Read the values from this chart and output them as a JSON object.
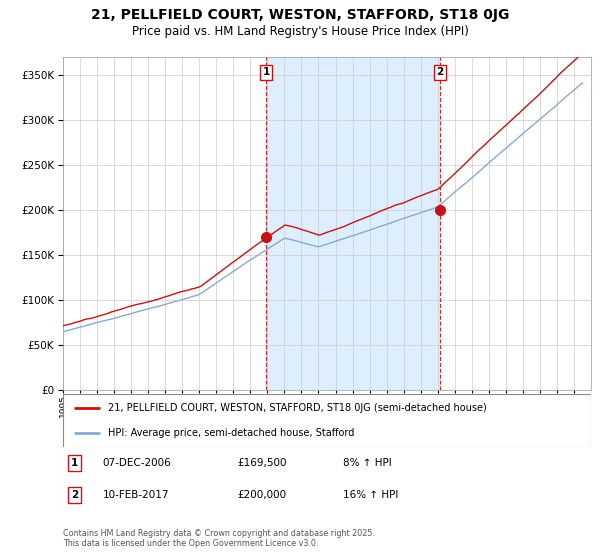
{
  "title": "21, PELLFIELD COURT, WESTON, STAFFORD, ST18 0JG",
  "subtitle": "Price paid vs. HM Land Registry's House Price Index (HPI)",
  "legend_line1": "21, PELLFIELD COURT, WESTON, STAFFORD, ST18 0JG (semi-detached house)",
  "legend_line2": "HPI: Average price, semi-detached house, Stafford",
  "sale1_label": "1",
  "sale1_date": "07-DEC-2006",
  "sale1_price": "£169,500",
  "sale1_hpi": "8% ↑ HPI",
  "sale2_label": "2",
  "sale2_date": "10-FEB-2017",
  "sale2_price": "£200,000",
  "sale2_hpi": "16% ↑ HPI",
  "footer": "Contains HM Land Registry data © Crown copyright and database right 2025.\nThis data is licensed under the Open Government Licence v3.0.",
  "red_color": "#cc1111",
  "blue_color": "#88aacc",
  "shade_color": "#ddeeff",
  "plot_bg": "#ffffff",
  "fig_bg": "#ffffff",
  "grid_color": "#cccccc",
  "ylim_max": 370000,
  "ytick_vals": [
    0,
    50000,
    100000,
    150000,
    200000,
    250000,
    300000,
    350000
  ],
  "xmin": 1995,
  "xmax": 2026,
  "sale1_year": 2006.92,
  "sale1_value": 169500,
  "sale2_year": 2017.12,
  "sale2_value": 200000
}
